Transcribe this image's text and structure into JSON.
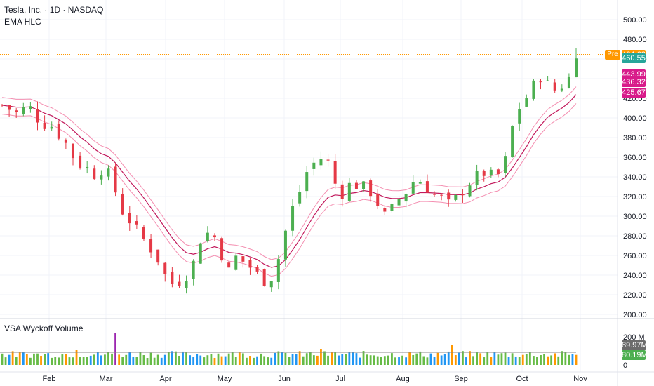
{
  "header": {
    "symbol_line": "Tesla, Inc. · 1D · NASDAQ",
    "indicator": "EMA HLC",
    "volume_indicator": "VSA Wyckoff Volume"
  },
  "price_badges": {
    "pre_tag": "Pre",
    "pre_price": "464.62",
    "last_price": "460.55",
    "ema_high": "443.99",
    "ema_close": "436.32",
    "ema_low": "425.67"
  },
  "volume_badges": {
    "max_label": "200 M",
    "zero_label": "0",
    "avg": "89.97M",
    "last": "80.19M"
  },
  "colors": {
    "up": "#4caf50",
    "down": "#e53946",
    "ema_mid": "#c2185b",
    "ema_band": "#f48fb1",
    "vol_green": "#66bb46",
    "vol_orange": "#ff9800",
    "vol_blue": "#2196f3",
    "vol_purple": "#9c27b0",
    "pre_line": "#ff9800"
  },
  "chart_data": {
    "type": "candlestick",
    "yticks": [
      "500.00",
      "480.00",
      "460.00",
      "440.00",
      "420.00",
      "400.00",
      "380.00",
      "360.00",
      "340.00",
      "320.00",
      "300.00",
      "280.00",
      "260.00",
      "240.00",
      "220.00",
      "200.00"
    ],
    "ylim": [
      200,
      508
    ],
    "xticks": [
      "Feb",
      "Mar",
      "Apr",
      "May",
      "Jun",
      "Jul",
      "Aug",
      "Sep",
      "Oct",
      "Nov"
    ],
    "pre_market_price": 464.62,
    "last_price": 460.55,
    "ema_high_last": 443.99,
    "ema_close_last": 436.32,
    "ema_low_last": 425.67,
    "close_path": [
      [
        0,
        413
      ],
      [
        8,
        405
      ],
      [
        15,
        412
      ],
      [
        22,
        395
      ],
      [
        28,
        392
      ],
      [
        35,
        377
      ],
      [
        42,
        355
      ],
      [
        47,
        350
      ],
      [
        52,
        343
      ],
      [
        58,
        350
      ],
      [
        63,
        330
      ],
      [
        68,
        305
      ],
      [
        72,
        296
      ],
      [
        77,
        283
      ],
      [
        82,
        272
      ],
      [
        87,
        260
      ],
      [
        92,
        240
      ],
      [
        97,
        230
      ],
      [
        102,
        237
      ],
      [
        107,
        246
      ],
      [
        112,
        277
      ],
      [
        117,
        284
      ],
      [
        122,
        275
      ],
      [
        127,
        240
      ],
      [
        132,
        258
      ],
      [
        137,
        253
      ],
      [
        142,
        245
      ],
      [
        147,
        234
      ],
      [
        152,
        238
      ],
      [
        157,
        262
      ],
      [
        162,
        300
      ],
      [
        167,
        320
      ],
      [
        172,
        345
      ],
      [
        177,
        356
      ],
      [
        182,
        361
      ],
      [
        186,
        348
      ],
      [
        190,
        318
      ],
      [
        194,
        330
      ],
      [
        198,
        333
      ],
      [
        203,
        330
      ],
      [
        208,
        325
      ],
      [
        213,
        310
      ],
      [
        216,
        300
      ],
      [
        220,
        307
      ],
      [
        224,
        318
      ],
      [
        228,
        325
      ],
      [
        233,
        338
      ],
      [
        238,
        334
      ],
      [
        243,
        322
      ],
      [
        248,
        318
      ],
      [
        253,
        310
      ],
      [
        258,
        322
      ],
      [
        263,
        333
      ],
      [
        268,
        340
      ],
      [
        273,
        345
      ],
      [
        278,
        338
      ],
      [
        283,
        348
      ],
      [
        287,
        383
      ],
      [
        290,
        405
      ],
      [
        294,
        417
      ],
      [
        298,
        425
      ],
      [
        302,
        440
      ],
      [
        305,
        445
      ],
      [
        309,
        430
      ],
      [
        313,
        428
      ],
      [
        317,
        435
      ],
      [
        321,
        442
      ],
      [
        324,
        460.55
      ]
    ],
    "volume": {
      "ylim_label": "200 M",
      "avg": 89.97,
      "last": 80.19,
      "notable_bars": [
        {
          "t": 64,
          "value": 225,
          "color": "purple"
        },
        {
          "t": 37,
          "value": 125,
          "color": "orange"
        },
        {
          "t": 42,
          "value": 110,
          "color": "orange"
        },
        {
          "t": 180,
          "value": 115,
          "color": "orange"
        },
        {
          "t": 254,
          "value": 140,
          "color": "orange"
        }
      ]
    }
  }
}
